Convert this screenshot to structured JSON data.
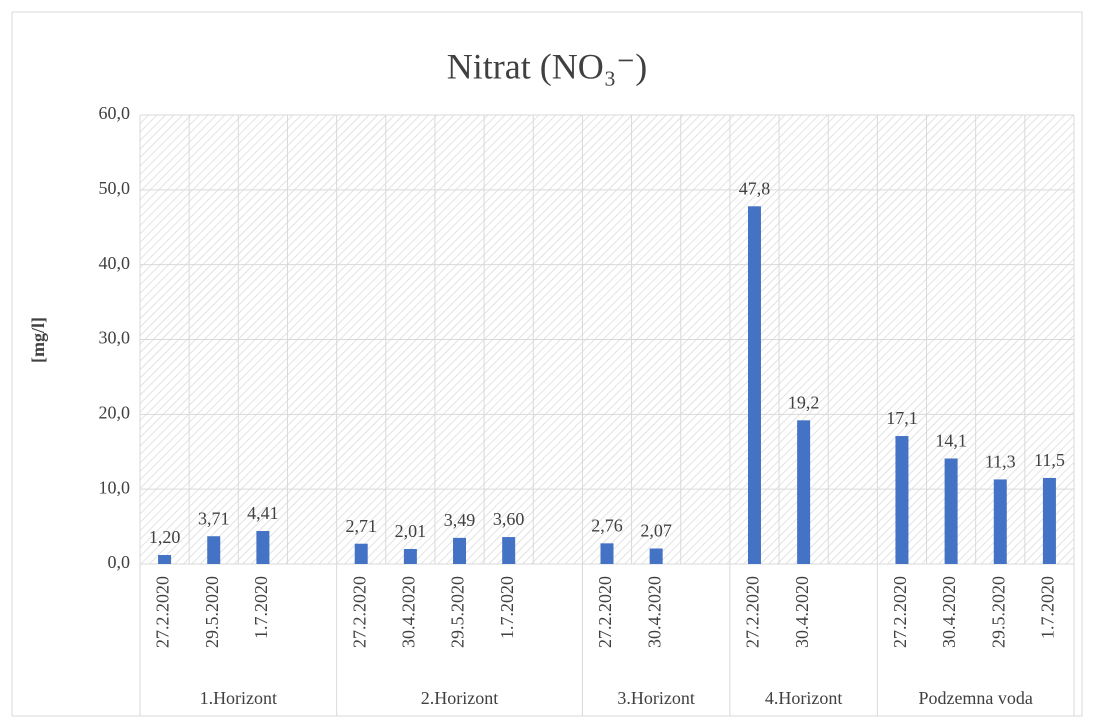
{
  "chart_data": {
    "type": "bar",
    "title": "Nitrat (NO₃⁻)",
    "ylabel": "[mg/l]",
    "color": "#4472c4",
    "grid": true,
    "ylim": [
      0,
      60
    ],
    "yticks": [
      {
        "value": 0,
        "label": "0,0"
      },
      {
        "value": 10,
        "label": "10,0"
      },
      {
        "value": 20,
        "label": "20,0"
      },
      {
        "value": 30,
        "label": "30,0"
      },
      {
        "value": 40,
        "label": "40,0"
      },
      {
        "value": 50,
        "label": "50,0"
      },
      {
        "value": 60,
        "label": "60,0"
      }
    ],
    "groups": [
      {
        "name": "1.Horizont",
        "categories": [
          "27.2.2020",
          "29.5.2020",
          "1.7.2020",
          null
        ],
        "values": [
          1.2,
          3.71,
          4.41,
          null
        ],
        "value_labels": [
          "1,20",
          "3,71",
          "4,41",
          null
        ]
      },
      {
        "name": "2.Horizont",
        "categories": [
          "27.2.2020",
          "30.4.2020",
          "29.5.2020",
          "1.7.2020",
          null
        ],
        "values": [
          2.71,
          2.01,
          3.49,
          3.6,
          null
        ],
        "value_labels": [
          "2,71",
          "2,01",
          "3,49",
          "3,60",
          null
        ]
      },
      {
        "name": "3.Horizont",
        "categories": [
          "27.2.2020",
          "30.4.2020",
          null
        ],
        "values": [
          2.76,
          2.07,
          null
        ],
        "value_labels": [
          "2,76",
          "2,07",
          null
        ]
      },
      {
        "name": "4.Horizont",
        "categories": [
          "27.2.2020",
          "30.4.2020",
          null
        ],
        "values": [
          47.8,
          19.2,
          null
        ],
        "value_labels": [
          "47,8",
          "19,2",
          null
        ]
      },
      {
        "name": "Podzemna voda",
        "categories": [
          "27.2.2020",
          "30.4.2020",
          "29.5.2020",
          "1.7.2020"
        ],
        "values": [
          17.1,
          14.1,
          11.3,
          11.5
        ],
        "value_labels": [
          "17,1",
          "14,1",
          "11,3",
          "11,5"
        ]
      }
    ]
  }
}
